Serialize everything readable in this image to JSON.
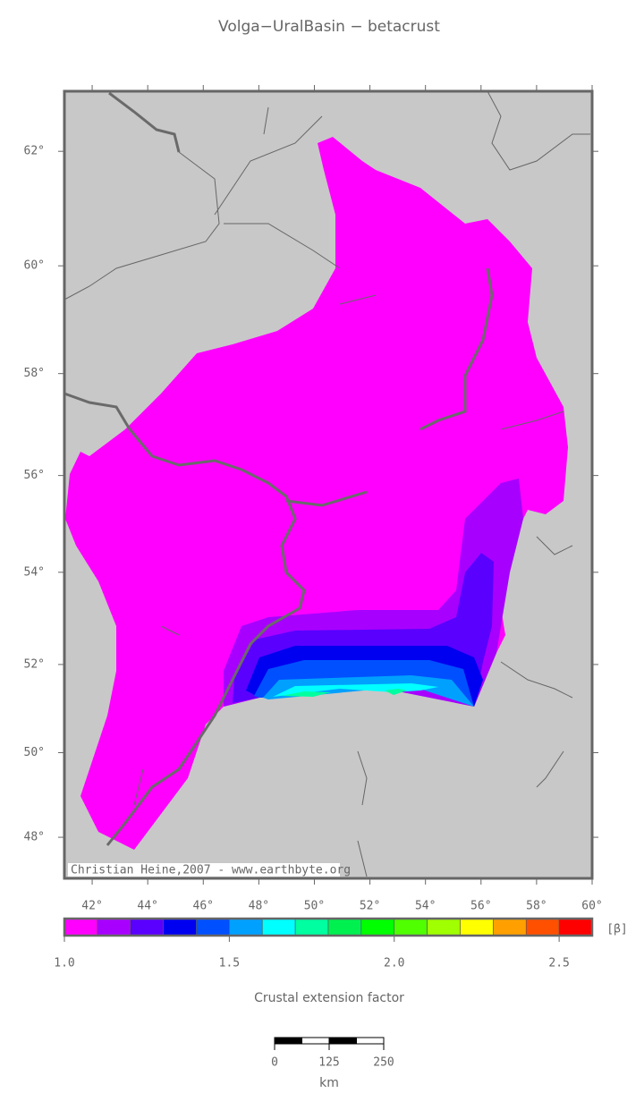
{
  "title": "Volga−UralBasin − betacrust",
  "map": {
    "projection": "mercator",
    "xlim": [
      41,
      60
    ],
    "ylim": [
      47,
      63
    ],
    "lat_ticks": [
      {
        "value": 48,
        "label": "48°"
      },
      {
        "value": 50,
        "label": "50°"
      },
      {
        "value": 52,
        "label": "52°"
      },
      {
        "value": 54,
        "label": "54°"
      },
      {
        "value": 56,
        "label": "56°"
      },
      {
        "value": 58,
        "label": "58°"
      },
      {
        "value": 60,
        "label": "60°"
      },
      {
        "value": 62,
        "label": "62°"
      }
    ],
    "lon_ticks": [
      {
        "value": 42,
        "label": "42°"
      },
      {
        "value": 44,
        "label": "44°"
      },
      {
        "value": 46,
        "label": "46°"
      },
      {
        "value": 48,
        "label": "48°"
      },
      {
        "value": 50,
        "label": "50°"
      },
      {
        "value": 52,
        "label": "52°"
      },
      {
        "value": 54,
        "label": "54°"
      },
      {
        "value": 56,
        "label": "56°"
      },
      {
        "value": 58,
        "label": "58°"
      },
      {
        "value": 60,
        "label": "60°"
      }
    ],
    "credit": "Christian Heine,2007 - www.earthbyte.org"
  },
  "colorbar": {
    "lim": [
      1,
      2.6
    ],
    "colors": [
      "#ff00ff",
      "#a800ff",
      "#5a00ff",
      "#0000f0",
      "#0050ff",
      "#00a0ff",
      "#00ffff",
      "#00ffa0",
      "#00f050",
      "#00ff00",
      "#50ff00",
      "#a0ff00",
      "#ffff00",
      "#ffa000",
      "#ff5000",
      "#ff0000"
    ],
    "ticks": [
      {
        "value": 1,
        "label": "1.0"
      },
      1.5,
      {
        "value": 2,
        "label": "2.0"
      },
      2.5
    ],
    "unit": "[β]",
    "label": "Crustal extension factor"
  },
  "scale_bar": {
    "ticks": [
      0,
      125,
      250
    ],
    "unit": "km"
  }
}
